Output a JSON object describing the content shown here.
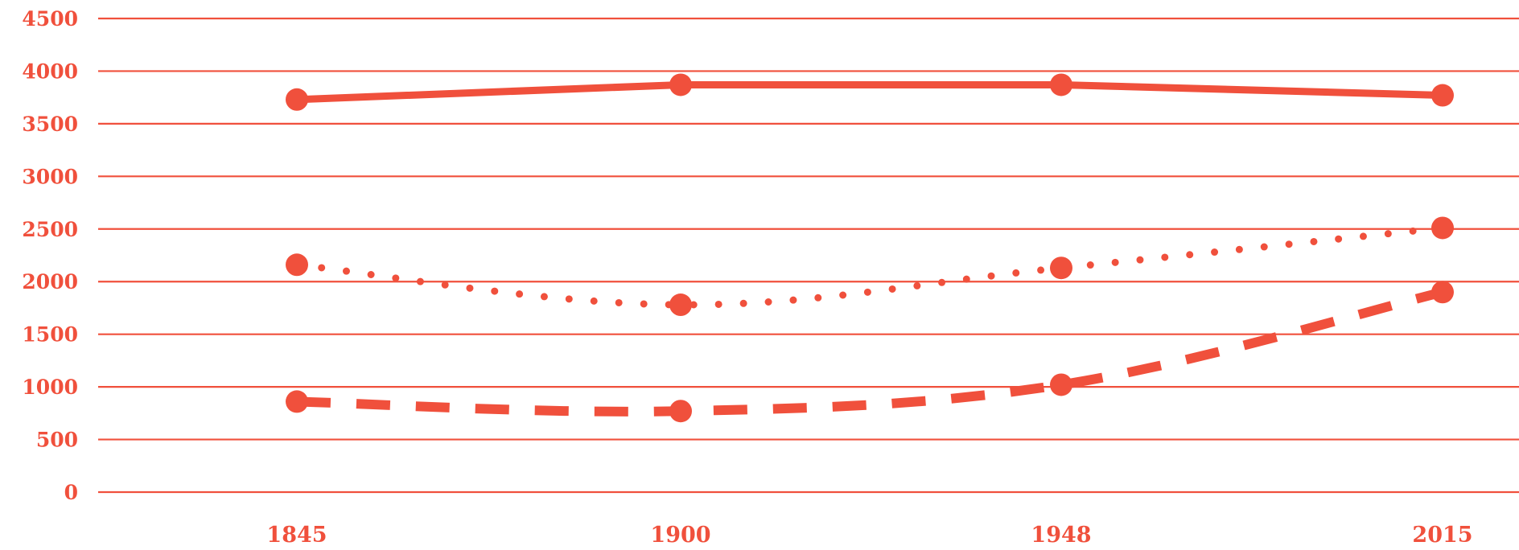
{
  "chart_data": {
    "type": "line",
    "title": "",
    "xlabel": "",
    "ylabel": "",
    "categories": [
      "1845",
      "1900",
      "1948",
      "2015"
    ],
    "ylim": [
      0,
      4500
    ],
    "y_ticks": [
      "0",
      "500",
      "1000",
      "1500",
      "2000",
      "2500",
      "3000",
      "3500",
      "4000",
      "4500"
    ],
    "grid": true,
    "legend": "none",
    "color": "#f0503c",
    "series": [
      {
        "style": "solid",
        "values": [
          3730,
          3870,
          3870,
          3770
        ]
      },
      {
        "style": "dotted",
        "values": [
          2160,
          1780,
          2130,
          2510
        ]
      },
      {
        "style": "dashed",
        "values": [
          860,
          770,
          1020,
          1900
        ]
      }
    ]
  }
}
